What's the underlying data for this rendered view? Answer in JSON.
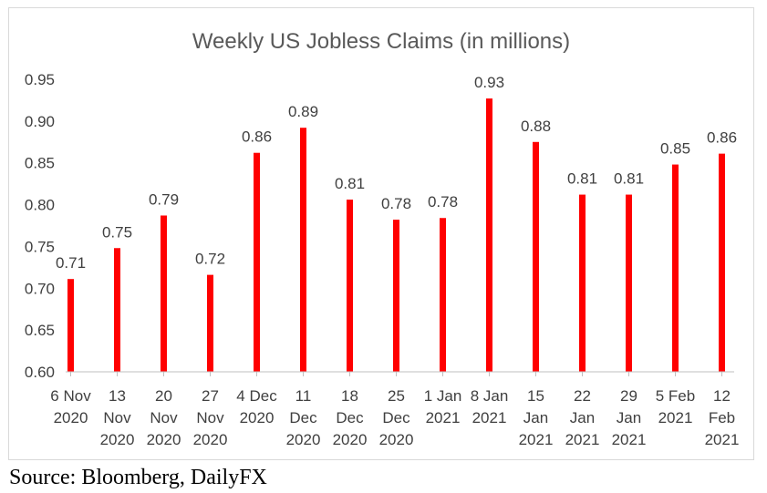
{
  "chart_data": {
    "type": "bar",
    "title": "Weekly US Jobless Claims (in millions)",
    "categories": [
      [
        "6 Nov",
        "2020"
      ],
      [
        "13",
        "Nov",
        "2020"
      ],
      [
        "20",
        "Nov",
        "2020"
      ],
      [
        "27",
        "Nov",
        "2020"
      ],
      [
        "4 Dec",
        "2020"
      ],
      [
        "11",
        "Dec",
        "2020"
      ],
      [
        "18",
        "Dec",
        "2020"
      ],
      [
        "25",
        "Dec",
        "2020"
      ],
      [
        "1 Jan",
        "2021"
      ],
      [
        "8 Jan",
        "2021"
      ],
      [
        "15",
        "Jan",
        "2021"
      ],
      [
        "22",
        "Jan",
        "2021"
      ],
      [
        "29",
        "Jan",
        "2021"
      ],
      [
        "5 Feb",
        "2021"
      ],
      [
        "12",
        "Feb",
        "2021"
      ]
    ],
    "values": [
      0.711,
      0.748,
      0.787,
      0.716,
      0.862,
      0.892,
      0.806,
      0.782,
      0.784,
      0.927,
      0.875,
      0.812,
      0.812,
      0.848,
      0.861
    ],
    "data_labels": [
      "0.71",
      "0.75",
      "0.79",
      "0.72",
      "0.86",
      "0.89",
      "0.81",
      "0.78",
      "0.78",
      "0.93",
      "0.88",
      "0.81",
      "0.81",
      "0.85",
      "0.86"
    ],
    "ylim": [
      0.6,
      0.95
    ],
    "yticks": [
      "0.60",
      "0.65",
      "0.70",
      "0.75",
      "0.80",
      "0.85",
      "0.90",
      "0.95"
    ],
    "xlabel": "",
    "ylabel": "",
    "grid": false,
    "bar_color": "#ff0000"
  },
  "source": "Source: Bloomberg, DailyFX"
}
